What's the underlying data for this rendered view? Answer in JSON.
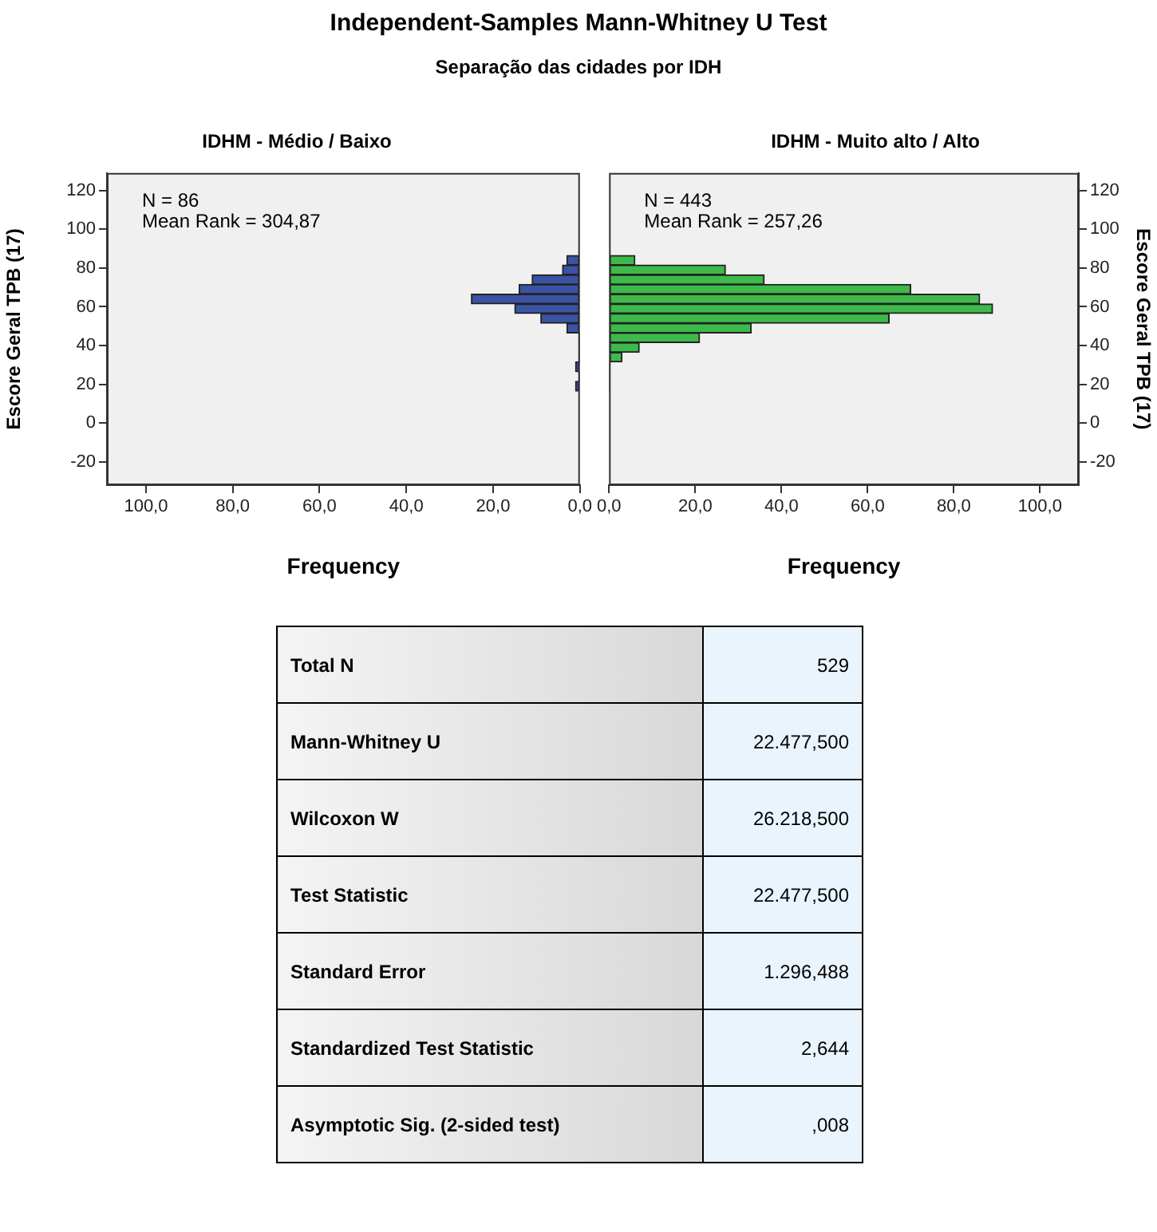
{
  "chart_data": [
    {
      "type": "other",
      "title": "Independent-Samples Mann-Whitney U Test",
      "subtitle": "Separação das cidades por IDH"
    },
    {
      "type": "histogram",
      "orientation": "horizontal",
      "title": "IDHM - Médio / Baixo",
      "xlabel": "Frequency",
      "ylabel": "Escore Geral TPB (17)",
      "color": "#3a53a4",
      "bins": [
        16.5,
        21.5,
        26.5,
        31.5,
        36.5,
        41.5,
        46.5,
        51.5,
        56.5,
        61.5,
        66.5,
        71.5,
        76.5,
        81.5,
        86.5
      ],
      "values": [
        1,
        0,
        1,
        0,
        0,
        0,
        3,
        9,
        15,
        25,
        14,
        11,
        4,
        3
      ],
      "xlim": [
        109,
        0
      ],
      "xticks": [
        {
          "value": 100,
          "label": "100,0"
        },
        {
          "value": 80,
          "label": "80,0"
        },
        {
          "value": 60,
          "label": "60,0"
        },
        {
          "value": 40,
          "label": "40,0"
        },
        {
          "value": 20,
          "label": "20,0"
        },
        {
          "value": 0,
          "label": "0,0"
        }
      ],
      "ylim": [
        -32,
        129
      ],
      "yticks": [
        -20,
        0,
        20,
        40,
        60,
        80,
        100,
        120
      ],
      "annotations": [
        "N = 86",
        "Mean Rank = 304,87"
      ]
    },
    {
      "type": "histogram",
      "orientation": "horizontal",
      "title": "IDHM - Muito alto / Alto",
      "xlabel": "Frequency",
      "ylabel": "Escore Geral TPB (17)",
      "color": "#3dba4a",
      "bins": [
        16.5,
        21.5,
        26.5,
        31.5,
        36.5,
        41.5,
        46.5,
        51.5,
        56.5,
        61.5,
        66.5,
        71.5,
        76.5,
        81.5,
        86.5
      ],
      "values": [
        0,
        0,
        0,
        3,
        7,
        21,
        33,
        65,
        89,
        86,
        70,
        36,
        27,
        6
      ],
      "xlim": [
        0,
        109
      ],
      "xticks": [
        {
          "value": 0,
          "label": "0,0"
        },
        {
          "value": 20,
          "label": "20,0"
        },
        {
          "value": 40,
          "label": "40,0"
        },
        {
          "value": 60,
          "label": "60,0"
        },
        {
          "value": 80,
          "label": "80,0"
        },
        {
          "value": 100,
          "label": "100,0"
        }
      ],
      "ylim": [
        -32,
        129
      ],
      "yticks": [
        -20,
        0,
        20,
        40,
        60,
        80,
        100,
        120
      ],
      "annotations": [
        "N = 443",
        "Mean Rank = 257,26"
      ]
    },
    {
      "type": "other",
      "categories": [
        "Total N",
        "Mann-Whitney U",
        "Wilcoxon W",
        "Test Statistic",
        "Standard Error",
        "Standardized Test Statistic",
        "Asymptotic Sig. (2-sided test)"
      ],
      "value_labels": [
        "529",
        "22.477,500",
        "26.218,500",
        "22.477,500",
        "1.296,488",
        "2,644",
        ",008"
      ]
    }
  ]
}
